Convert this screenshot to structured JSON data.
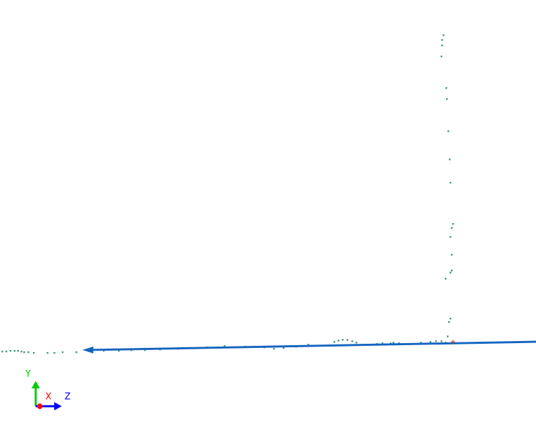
{
  "viewport": {
    "background": "#ffffff",
    "point_color": "#4a9a82",
    "line_color": "#1565c0",
    "marker_color": "#d32f2f"
  },
  "axes_gizmo": {
    "x": {
      "label": "X",
      "color": "#ff0000"
    },
    "y": {
      "label": "Y",
      "color": "#00cc00"
    },
    "z": {
      "label": "Z",
      "color": "#0000ff"
    }
  }
}
